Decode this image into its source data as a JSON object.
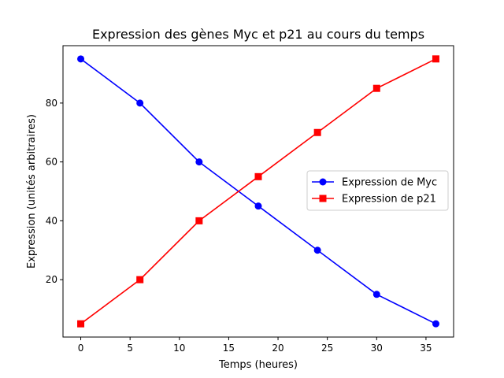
{
  "chart_data": {
    "type": "line",
    "title": "Expression des gènes Myc et p21 au cours du temps",
    "xlabel": "Temps (heures)",
    "ylabel": "Expression (unités arbitraires)",
    "xlim": [
      -1.8,
      37.8
    ],
    "ylim": [
      0.5,
      99.5
    ],
    "xticks": [
      0,
      5,
      10,
      15,
      20,
      25,
      30,
      35
    ],
    "yticks": [
      20,
      40,
      60,
      80
    ],
    "grid": false,
    "legend_position": "center-right",
    "x": [
      0,
      6,
      12,
      18,
      24,
      30,
      36
    ],
    "series": [
      {
        "name": "Expression de Myc",
        "color": "#0000ff",
        "marker": "circle",
        "values": [
          95,
          80,
          60,
          45,
          30,
          15,
          5
        ]
      },
      {
        "name": "Expression de p21",
        "color": "#ff0000",
        "marker": "square",
        "values": [
          5,
          20,
          40,
          55,
          70,
          85,
          95
        ]
      }
    ]
  }
}
